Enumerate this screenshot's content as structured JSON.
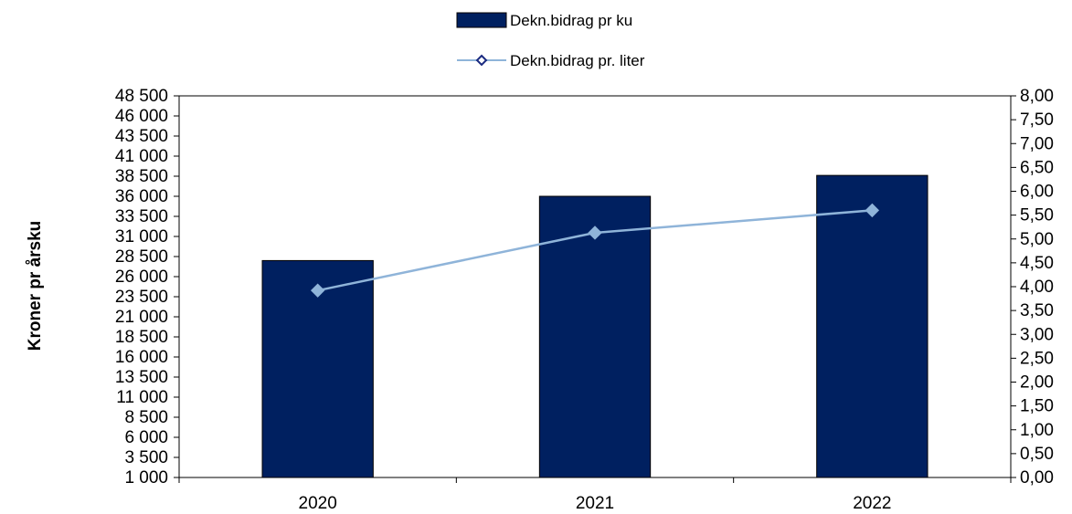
{
  "chart_data": {
    "type": "bar",
    "categories": [
      "2020",
      "2021",
      "2022"
    ],
    "series": [
      {
        "name": "Dekn.bidrag pr ku",
        "kind": "bar",
        "axis": "left",
        "color": "#002060",
        "values": [
          28000,
          36000,
          38600
        ]
      },
      {
        "name": "Dekn.bidrag pr. liter",
        "kind": "line",
        "axis": "right",
        "color": "#8fb4d9",
        "marker": "diamond",
        "values": [
          3.92,
          5.13,
          5.6
        ]
      }
    ],
    "ylabel": "Kroner pr årsku",
    "ylim": [
      1000,
      48500
    ],
    "yticks": [
      "1 000",
      "3 500",
      "6 000",
      "8 500",
      "11 000",
      "13 500",
      "16 000",
      "18 500",
      "21 000",
      "23 500",
      "26 000",
      "28 500",
      "31 000",
      "33 500",
      "36 000",
      "38 500",
      "41 000",
      "43 500",
      "46 000",
      "48 500"
    ],
    "y2lim": [
      0,
      8
    ],
    "y2ticks": [
      "0,00",
      "0,50",
      "1,00",
      "1,50",
      "2,00",
      "2,50",
      "3,00",
      "3,50",
      "4,00",
      "4,50",
      "5,00",
      "5,50",
      "6,00",
      "6,50",
      "7,00",
      "7,50",
      "8,00"
    ],
    "legend_position": "top-center",
    "grid": false
  }
}
